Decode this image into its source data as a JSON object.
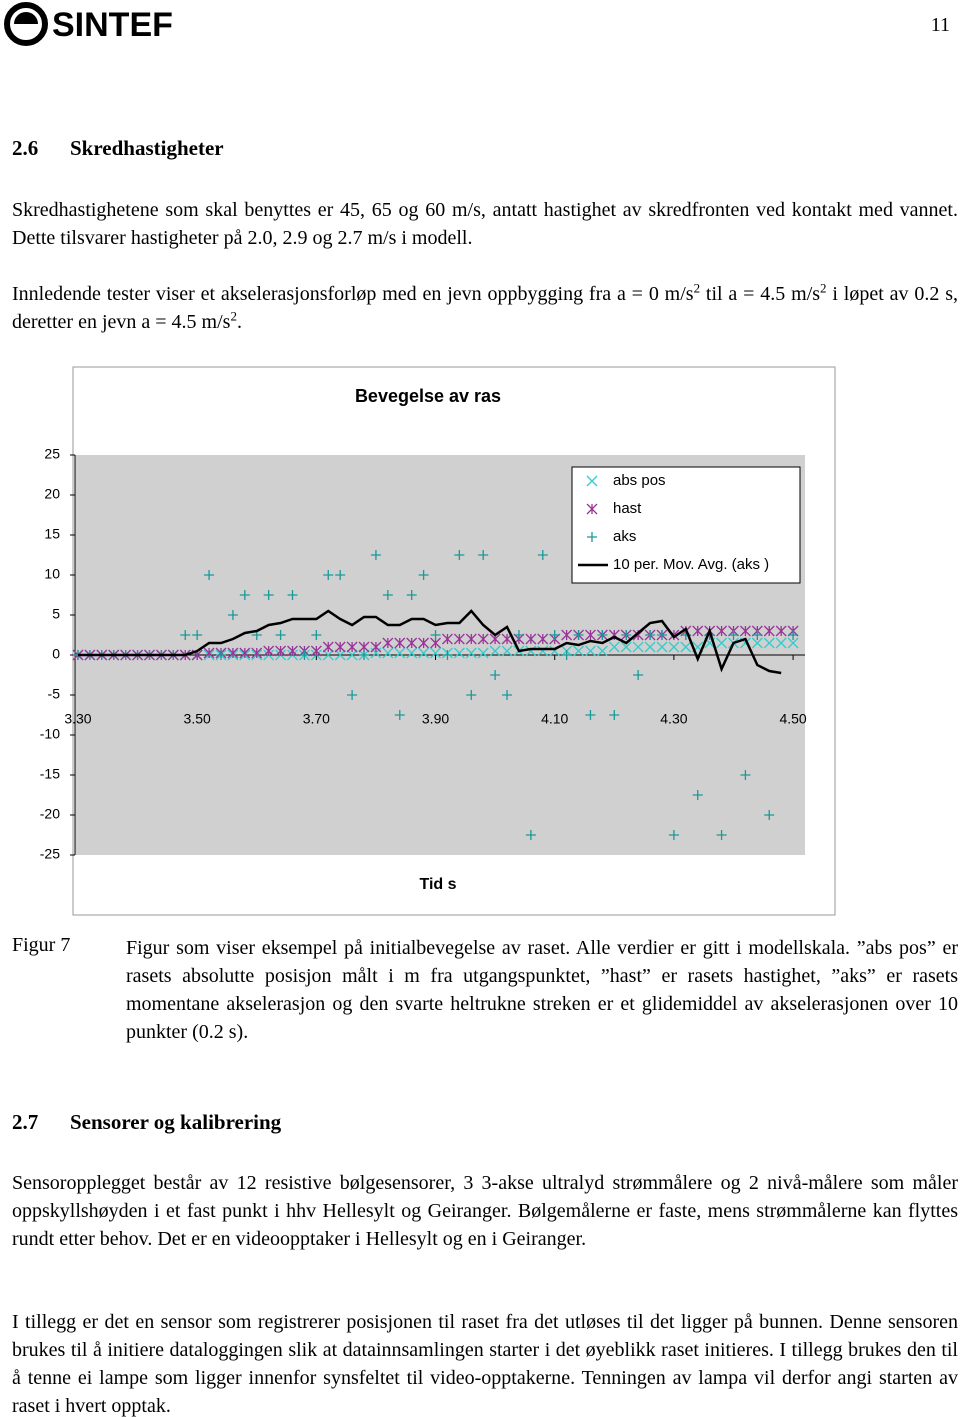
{
  "header": {
    "logo": "SINTEF",
    "page_number": "11"
  },
  "section_26": {
    "number": "2.6",
    "heading": "Skredhastigheter",
    "paragraph_1": "Skredhastighetene som skal benyttes er 45, 65 og 60 m/s, antatt hastighet av skredfronten ved kontakt med vannet. Dette tilsvarer hastigheter på 2.0, 2.9 og 2.7 m/s i modell.",
    "paragraph_2": [
      "Innledende tester viser et akselerasjonsforløp med en jevn oppbygging fra a = 0 m/s",
      "2",
      " til a = 4.5 m/s",
      "2",
      " i løpet av 0.2 s, deretter en jevn a = 4.5 m/s",
      "2",
      "."
    ]
  },
  "chart_data": {
    "type": "line",
    "title": "Bevegelse av ras",
    "x_label": "Tid s",
    "x": [
      3.3,
      3.32,
      3.34,
      3.36,
      3.38,
      3.4,
      3.42,
      3.44,
      3.46,
      3.48,
      3.5,
      3.52,
      3.54,
      3.56,
      3.58,
      3.6,
      3.62,
      3.64,
      3.66,
      3.68,
      3.7,
      3.72,
      3.74,
      3.76,
      3.78,
      3.8,
      3.82,
      3.84,
      3.86,
      3.88,
      3.9,
      3.92,
      3.94,
      3.96,
      3.98,
      4.0,
      4.02,
      4.04,
      4.06,
      4.08,
      4.1,
      4.12,
      4.14,
      4.16,
      4.18,
      4.2,
      4.22,
      4.24,
      4.26,
      4.28,
      4.3,
      4.32,
      4.34,
      4.36,
      4.38,
      4.4,
      4.42,
      4.44,
      4.46,
      4.48,
      4.5
    ],
    "series": [
      {
        "name": "abs pos",
        "color": "#33cccc",
        "marker": "x",
        "values": [
          0,
          0,
          0,
          0,
          0,
          0,
          0,
          0,
          0,
          0,
          0,
          0,
          0,
          0,
          0,
          0,
          0,
          0,
          0,
          0,
          0,
          0,
          0,
          0,
          0,
          0.25,
          0.25,
          0.25,
          0.25,
          0.25,
          0.25,
          0.25,
          0.25,
          0.25,
          0.25,
          0.5,
          0.5,
          0.5,
          0.5,
          0.5,
          0.5,
          0.5,
          0.5,
          0.5,
          0.5,
          1,
          1,
          1,
          1,
          1,
          1,
          1,
          1,
          1.5,
          1.5,
          1.5,
          1.5,
          1.5,
          1.5,
          1.5,
          1.5
        ]
      },
      {
        "name": "hast",
        "color": "#993399",
        "marker": "asterisk",
        "values": [
          0,
          0,
          0,
          0,
          0,
          0,
          0,
          0,
          0,
          0,
          0,
          0.25,
          0.25,
          0.25,
          0.25,
          0.25,
          0.5,
          0.5,
          0.5,
          0.5,
          0.5,
          1,
          1,
          1,
          1,
          1,
          1.5,
          1.5,
          1.5,
          1.5,
          1.5,
          2,
          2,
          2,
          2,
          2,
          2,
          2,
          2,
          2,
          2,
          2.5,
          2.5,
          2.5,
          2.5,
          2.5,
          2.5,
          2.5,
          2.5,
          2.5,
          2.5,
          3,
          3,
          3,
          3,
          3,
          3,
          3,
          3,
          3,
          3
        ]
      },
      {
        "name": "aks",
        "color": "#1a9999",
        "marker": "plus",
        "values": [
          0,
          0,
          0,
          0,
          0,
          0,
          0,
          0,
          0,
          2.5,
          2.5,
          10,
          0,
          5,
          7.5,
          2.5,
          7.5,
          2.5,
          7.5,
          0,
          2.5,
          10,
          10,
          -5,
          0,
          12.5,
          7.5,
          -7.5,
          7.5,
          10,
          2.5,
          0,
          12.5,
          -5,
          12.5,
          -2.5,
          -5,
          2.5,
          -22.5,
          12.5,
          2.5,
          0,
          2.5,
          -7.5,
          2.5,
          -7.5,
          2.5,
          -2.5,
          2.5,
          2.5,
          -22.5,
          2.5,
          -17.5,
          2.5,
          -22.5,
          2.5,
          -15,
          2.5,
          -20,
          10,
          2.5
        ]
      },
      {
        "name": "10 per. Mov. Avg. (aks )",
        "color": "#000000",
        "marker": null,
        "values": [
          0,
          0,
          0,
          0,
          0,
          0,
          0,
          0,
          0,
          0,
          0.5,
          1.5,
          1.5,
          2,
          2.75,
          3,
          3.75,
          4,
          4.5,
          4.5,
          4.5,
          5.5,
          4.5,
          3.75,
          4.75,
          4.75,
          3.75,
          3.75,
          4.5,
          4.5,
          3.75,
          4,
          4,
          5.5,
          3.75,
          2.5,
          3.5,
          0.5,
          0.75,
          0.75,
          0.75,
          1.5,
          1.25,
          1.75,
          1.5,
          2.25,
          1.5,
          2.75,
          4,
          4.25,
          2.25,
          3.25,
          -0.5,
          3,
          -1.75,
          1.5,
          2,
          -1.25,
          -2,
          -2.25,
          null
        ]
      }
    ],
    "xlim": [
      3.295,
      4.52
    ],
    "ylim": [
      -25,
      25
    ],
    "xticks": [
      {
        "value": 3.3,
        "label": "3.30"
      },
      {
        "value": 3.5,
        "label": "3.50"
      },
      {
        "value": 3.7,
        "label": "3.70"
      },
      {
        "value": 3.9,
        "label": "3.90"
      },
      {
        "value": 4.1,
        "label": "4.10"
      },
      {
        "value": 4.3,
        "label": "4.30"
      },
      {
        "value": 4.5,
        "label": "4.50"
      }
    ],
    "yticks": [
      25,
      20,
      15,
      10,
      5,
      0,
      -5,
      -10,
      -15,
      -20,
      -25
    ],
    "grid": false,
    "legend": "upper right"
  },
  "figure": {
    "label": "Figur 7",
    "caption": "Figur som viser eksempel på initialbevegelse av raset. Alle verdier er gitt i modellskala. ”abs pos” er rasets absolutte posisjon målt i m fra utgangspunktet, ”hast” er rasets hastighet, ”aks” er rasets momentane akselerasjon og den svarte heltrukne streken er et glidemiddel av akselerasjonen over 10 punkter (0.2 s)."
  },
  "section_27": {
    "number": "2.7",
    "heading": "Sensorer og kalibrering",
    "paragraph_1": "Sensoropplegget består av 12 resistive bølgesensorer, 3 3-akse ultralyd strømmålere og 2 nivå-målere som måler oppskyllshøyden i et fast punkt i hhv Hellesylt og Geiranger. Bølgemålerne er faste, mens strømmålerne kan flyttes rundt etter behov. Det er en videoopptaker i Hellesylt og en i Geiranger.",
    "paragraph_2": "I tillegg er det en sensor som registrerer posisjonen til raset fra det utløses til det ligger på bunnen. Denne sensoren brukes til å initiere dataloggingen slik at datainnsamlingen starter i det øyeblikk raset initieres. I tillegg brukes den til å tenne ei lampe som ligger innenfor synsfeltet til video-opptakerne. Tenningen av lampa vil derfor angi starten av raset i hvert opptak."
  }
}
